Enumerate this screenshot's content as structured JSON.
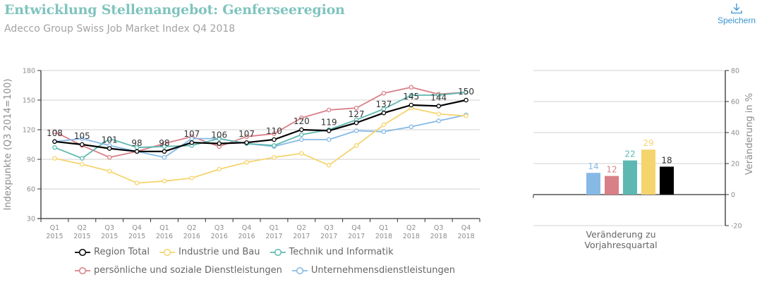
{
  "header": {
    "title": "Entwicklung Stellenangebot: Genferseeregion",
    "subtitle": "Adecco Group Swiss Job Market Index Q4 2018",
    "save_label": "Speichern",
    "save_icon": "download-icon"
  },
  "colors": {
    "region_total": "#000000",
    "industrie": "#f5d46e",
    "technik": "#5db8b1",
    "persoenlich": "#d97f87",
    "unternehmen": "#86b9e6"
  },
  "chart_data": [
    {
      "type": "line",
      "title": "Entwicklung Stellenangebot: Genferseeregion",
      "xlabel": "",
      "ylabel": "Indexpunkte (Q3 2014=100)",
      "ylim": [
        30,
        180
      ],
      "yticks": [
        "30",
        "60",
        "90",
        "120",
        "150",
        "180"
      ],
      "grid": true,
      "categories": [
        {
          "q": "Q1",
          "y": "2015"
        },
        {
          "q": "Q2",
          "y": "2015"
        },
        {
          "q": "Q3",
          "y": "2015"
        },
        {
          "q": "Q4",
          "y": "2015"
        },
        {
          "q": "Q1",
          "y": "2016"
        },
        {
          "q": "Q2",
          "y": "2016"
        },
        {
          "q": "Q3",
          "y": "2016"
        },
        {
          "q": "Q4",
          "y": "2016"
        },
        {
          "q": "Q1",
          "y": "2017"
        },
        {
          "q": "Q2",
          "y": "2017"
        },
        {
          "q": "Q3",
          "y": "2017"
        },
        {
          "q": "Q4",
          "y": "2017"
        },
        {
          "q": "Q1",
          "y": "2018"
        },
        {
          "q": "Q2",
          "y": "2018"
        },
        {
          "q": "Q3",
          "y": "2018"
        },
        {
          "q": "Q4",
          "y": "2018"
        }
      ],
      "series": [
        {
          "key": "persoenlich",
          "name": "persönliche und soziale Dienstleistungen",
          "color": "#d97f87",
          "values": [
            118,
            104,
            92,
            98,
            106,
            113,
            103,
            113,
            116,
            132,
            140,
            142,
            157,
            163,
            156,
            158
          ]
        },
        {
          "key": "unternehmen",
          "name": "Unternehmensdienstleistungen",
          "color": "#86b9e6",
          "values": [
            108,
            111,
            104,
            98,
            92,
            111,
            111,
            106,
            103,
            110,
            110,
            119,
            118,
            123,
            129,
            135
          ]
        },
        {
          "key": "industrie",
          "name": "Industrie und Bau",
          "color": "#f5d46e",
          "values": [
            91,
            85,
            78,
            66,
            68,
            71,
            80,
            87,
            92,
            96,
            84,
            104,
            125,
            142,
            136,
            134
          ]
        },
        {
          "key": "technik",
          "name": "Technik und Informatik",
          "color": "#5db8b1",
          "values": [
            102,
            91,
            111,
            102,
            103,
            104,
            111,
            106,
            104,
            115,
            120,
            130,
            141,
            155,
            155,
            158
          ]
        },
        {
          "key": "region_total",
          "name": "Region Total",
          "color": "#000000",
          "labeled": true,
          "values": [
            108,
            105,
            101,
            98,
            98,
            107,
            106,
            107,
            110,
            120,
            119,
            127,
            137,
            145,
            144,
            150
          ]
        }
      ],
      "legend": {
        "placement": "bottom",
        "rows": [
          [
            "region_total",
            "industrie",
            "technik"
          ],
          [
            "persoenlich",
            "unternehmen"
          ]
        ]
      }
    },
    {
      "type": "bar",
      "title": "",
      "xlabel": "Veränderung zu Vorjahresquartal",
      "xlabel_lines": [
        "Veränderung zu",
        "Vorjahresquartal"
      ],
      "ylabel": "Veränderung in %",
      "ylim": [
        -20,
        80
      ],
      "yticks": [
        "-20",
        "0",
        "20",
        "40",
        "60",
        "80"
      ],
      "grid": true,
      "axis_side": "right",
      "bars": [
        {
          "key": "unternehmen",
          "name": "Unternehmensdienstleistungen",
          "value": 14,
          "label": "14",
          "color": "#86b9e6"
        },
        {
          "key": "persoenlich",
          "name": "persönliche und soziale Dienstleistungen",
          "value": 12,
          "label": "12",
          "color": "#d97f87"
        },
        {
          "key": "technik",
          "name": "Technik und Informatik",
          "value": 22,
          "label": "22",
          "color": "#5db8b1"
        },
        {
          "key": "industrie",
          "name": "Industrie und Bau",
          "value": 29,
          "label": "29",
          "color": "#f5d46e"
        },
        {
          "key": "region_total",
          "name": "Region Total",
          "value": 18,
          "label": "18",
          "color": "#000000"
        }
      ]
    }
  ]
}
